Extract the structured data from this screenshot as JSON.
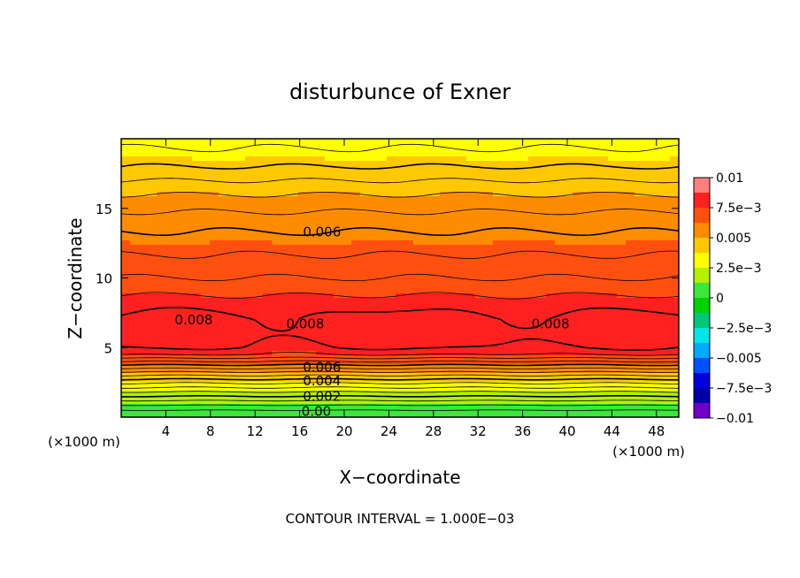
{
  "chart_data": {
    "type": "heatmap",
    "title": "disturbunce of Exner",
    "xlabel": "X−coordinate",
    "ylabel": "Z−coordinate",
    "x_unit_left": "(×1000 m)",
    "x_unit_right": "(×1000 m)",
    "footer": "CONTOUR INTERVAL = 1.000E−03",
    "xlim": [
      0,
      50
    ],
    "ylim": [
      0,
      20
    ],
    "x_ticks": [
      4,
      8,
      12,
      16,
      20,
      24,
      28,
      32,
      36,
      40,
      44,
      48
    ],
    "y_ticks": [
      5,
      10,
      15
    ],
    "colorbar": {
      "range": [
        -0.01,
        0.01
      ],
      "labels": [
        {
          "value": 0.01,
          "text": "0.01"
        },
        {
          "value": 0.0075,
          "text": "7.5e−3"
        },
        {
          "value": 0.005,
          "text": "0.005"
        },
        {
          "value": 0.0025,
          "text": "2.5e−3"
        },
        {
          "value": 0,
          "text": "0"
        },
        {
          "value": -0.0025,
          "text": "−2.5e−3"
        },
        {
          "value": -0.005,
          "text": "−0.005"
        },
        {
          "value": -0.0075,
          "text": "−7.5e−3"
        },
        {
          "value": -0.01,
          "text": "−0.01"
        }
      ],
      "colors": [
        "#ff7f7f",
        "#ff2020",
        "#ff5010",
        "#ff8c00",
        "#ffc800",
        "#ffff00",
        "#b4f000",
        "#3ce63c",
        "#00d200",
        "#00c878",
        "#00e6e6",
        "#00aaff",
        "#0050ff",
        "#0000dc",
        "#0000aa",
        "#7000c8"
      ]
    },
    "profile": [
      {
        "z": 0.0,
        "v": 0.0
      },
      {
        "z": 0.5,
        "v": 0.0005
      },
      {
        "z": 1.0,
        "v": 0.0012
      },
      {
        "z": 1.5,
        "v": 0.002
      },
      {
        "z": 2.0,
        "v": 0.0028
      },
      {
        "z": 2.5,
        "v": 0.0036
      },
      {
        "z": 3.0,
        "v": 0.0045
      },
      {
        "z": 3.5,
        "v": 0.0055
      },
      {
        "z": 4.0,
        "v": 0.0065
      },
      {
        "z": 4.5,
        "v": 0.0075
      },
      {
        "z": 5.0,
        "v": 0.008
      },
      {
        "z": 6.0,
        "v": 0.0084
      },
      {
        "z": 7.0,
        "v": 0.0082
      },
      {
        "z": 8.0,
        "v": 0.0078
      },
      {
        "z": 9.0,
        "v": 0.0074
      },
      {
        "z": 10.0,
        "v": 0.007
      },
      {
        "z": 11.0,
        "v": 0.0067
      },
      {
        "z": 12.0,
        "v": 0.0064
      },
      {
        "z": 13.0,
        "v": 0.0061
      },
      {
        "z": 14.0,
        "v": 0.0058
      },
      {
        "z": 15.0,
        "v": 0.0054
      },
      {
        "z": 16.0,
        "v": 0.005
      },
      {
        "z": 17.0,
        "v": 0.0045
      },
      {
        "z": 18.0,
        "v": 0.004
      },
      {
        "z": 19.0,
        "v": 0.0036
      },
      {
        "z": 20.0,
        "v": 0.0033
      }
    ],
    "contour_labels": [
      {
        "text": "0.006",
        "x": 18.0,
        "z": 13.3
      },
      {
        "text": "0.008",
        "x": 6.5,
        "z": 7.0
      },
      {
        "text": "0.008",
        "x": 16.5,
        "z": 6.7
      },
      {
        "text": "0.008",
        "x": 38.5,
        "z": 6.7
      },
      {
        "text": "0.006",
        "x": 18.0,
        "z": 3.6
      },
      {
        "text": "0.004",
        "x": 18.0,
        "z": 2.6
      },
      {
        "text": "0.002",
        "x": 18.0,
        "z": 1.5
      },
      {
        "text": "0.00",
        "x": 17.5,
        "z": 0.4
      }
    ]
  }
}
